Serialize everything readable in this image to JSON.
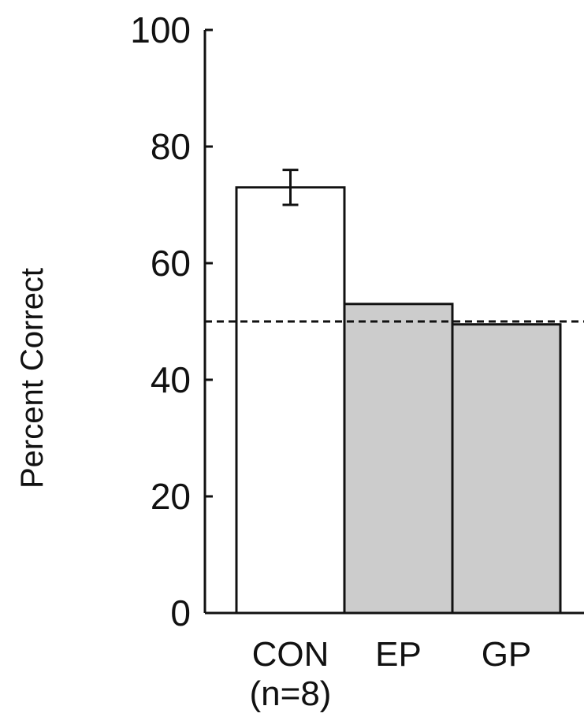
{
  "chart_data": {
    "type": "bar",
    "title": "",
    "xlabel": "",
    "ylabel": "Percent Correct",
    "ylim": [
      0,
      100
    ],
    "yticks": [
      "0",
      "20",
      "40",
      "60",
      "80",
      "100"
    ],
    "categories": [
      "CON",
      "EP",
      "GP"
    ],
    "category_sublabels": [
      "(n=8)",
      "",
      ""
    ],
    "values": [
      73,
      53,
      49.5
    ],
    "error": [
      3,
      null,
      null
    ],
    "bar_colors": [
      "#ffffff",
      "#cccccc",
      "#cccccc"
    ],
    "reference_line": {
      "value": 50,
      "style": "dashed"
    },
    "grid": false,
    "legend": "none"
  }
}
